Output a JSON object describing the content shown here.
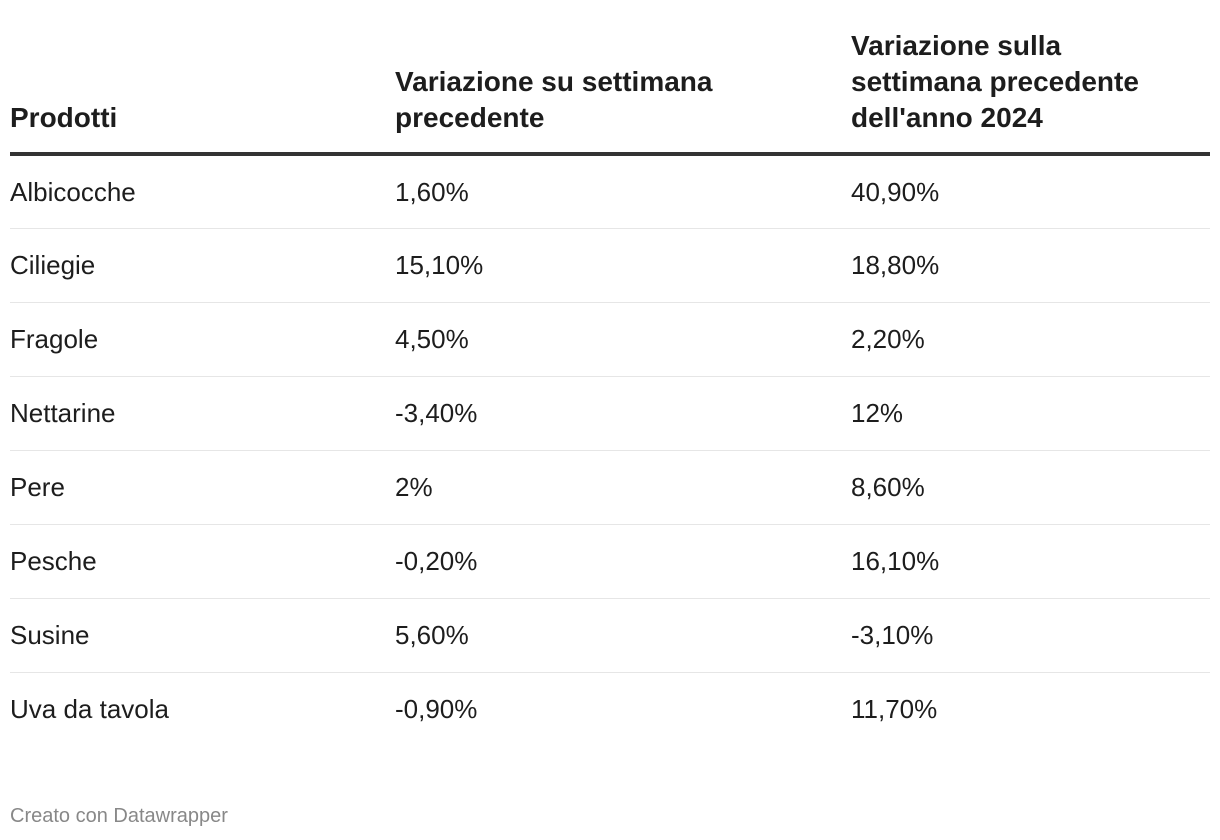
{
  "chart_data": {
    "type": "table",
    "columns": [
      "Prodotti",
      "Variazione su settimana precedente",
      "Variazione sulla settimana precedente dell'anno 2024"
    ],
    "rows": [
      {
        "product": "Albicocche",
        "weekly": "1,60%",
        "yearly": "40,90%"
      },
      {
        "product": "Ciliegie",
        "weekly": "15,10%",
        "yearly": "18,80%"
      },
      {
        "product": "Fragole",
        "weekly": "4,50%",
        "yearly": "2,20%"
      },
      {
        "product": "Nettarine",
        "weekly": "-3,40%",
        "yearly": "12%"
      },
      {
        "product": "Pere",
        "weekly": "2%",
        "yearly": "8,60%"
      },
      {
        "product": "Pesche",
        "weekly": "-0,20%",
        "yearly": "16,10%"
      },
      {
        "product": "Susine",
        "weekly": "5,60%",
        "yearly": "-3,10%"
      },
      {
        "product": "Uva da tavola",
        "weekly": "-0,90%",
        "yearly": "11,70%"
      }
    ]
  },
  "footer": {
    "credit": "Creato con Datawrapper"
  },
  "colors": {
    "text": "#1d1d1d",
    "header_rule": "#333333",
    "row_rule": "#e6e6e6",
    "footer_text": "#888888"
  }
}
